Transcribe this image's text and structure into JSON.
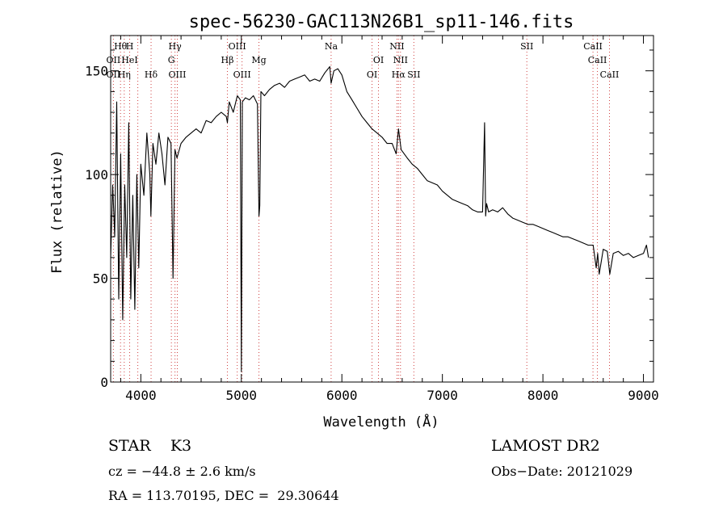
{
  "chart_data": {
    "type": "line",
    "title": "spec-56230-GAC113N26B1_sp11-146.fits",
    "xlabel": "Wavelength (Å)",
    "ylabel": "Flux (relative)",
    "xlim": [
      3700,
      9100
    ],
    "ylim": [
      0,
      167
    ],
    "xticks": [
      4000,
      5000,
      6000,
      7000,
      8000,
      9000
    ],
    "yticks": [
      0,
      50,
      100,
      150
    ],
    "grid": false,
    "series": [
      {
        "color": "#000000",
        "x": [
          3700,
          3720,
          3740,
          3760,
          3780,
          3800,
          3820,
          3840,
          3860,
          3880,
          3900,
          3920,
          3940,
          3960,
          3980,
          4000,
          4030,
          4060,
          4090,
          4100,
          4120,
          4150,
          4180,
          4210,
          4240,
          4270,
          4300,
          4320,
          4340,
          4360,
          4400,
          4450,
          4500,
          4550,
          4600,
          4650,
          4700,
          4750,
          4800,
          4850,
          4861,
          4880,
          4920,
          4960,
          4990,
          5000,
          5010,
          5040,
          5080,
          5120,
          5160,
          5175,
          5183,
          5195,
          5230,
          5280,
          5330,
          5380,
          5430,
          5480,
          5530,
          5580,
          5630,
          5680,
          5730,
          5780,
          5830,
          5880,
          5893,
          5920,
          5960,
          6000,
          6050,
          6100,
          6150,
          6200,
          6250,
          6300,
          6350,
          6400,
          6450,
          6500,
          6540,
          6563,
          6590,
          6650,
          6700,
          6750,
          6800,
          6850,
          6900,
          6950,
          7000,
          7050,
          7100,
          7150,
          7200,
          7250,
          7300,
          7350,
          7400,
          7420,
          7430,
          7440,
          7460,
          7500,
          7550,
          7600,
          7650,
          7700,
          7750,
          7800,
          7850,
          7900,
          7950,
          8000,
          8050,
          8100,
          8150,
          8200,
          8250,
          8300,
          8350,
          8400,
          8450,
          8500,
          8530,
          8545,
          8560,
          8600,
          8640,
          8665,
          8700,
          8750,
          8800,
          8850,
          8900,
          8950,
          9000,
          9030,
          9050
        ],
        "y": [
          60,
          95,
          70,
          135,
          40,
          110,
          30,
          95,
          60,
          125,
          40,
          90,
          35,
          100,
          55,
          105,
          90,
          120,
          100,
          80,
          115,
          105,
          120,
          110,
          95,
          118,
          115,
          50,
          112,
          108,
          115,
          118,
          120,
          122,
          120,
          126,
          125,
          128,
          130,
          128,
          125,
          135,
          130,
          138,
          136,
          5,
          135,
          137,
          136,
          138,
          134,
          80,
          85,
          140,
          138,
          141,
          143,
          144,
          142,
          145,
          146,
          147,
          148,
          145,
          146,
          145,
          149,
          152,
          144,
          150,
          151,
          148,
          140,
          136,
          132,
          128,
          125,
          122,
          120,
          118,
          115,
          115,
          110,
          122,
          112,
          108,
          105,
          103,
          100,
          97,
          96,
          95,
          92,
          90,
          88,
          87,
          86,
          85,
          83,
          82,
          82,
          125,
          80,
          86,
          82,
          83,
          82,
          84,
          81,
          79,
          78,
          77,
          76,
          76,
          75,
          74,
          73,
          72,
          71,
          70,
          70,
          69,
          68,
          67,
          66,
          66,
          55,
          62,
          52,
          64,
          63,
          52,
          62,
          63,
          61,
          62,
          60,
          61,
          62,
          66,
          60
        ]
      }
    ],
    "line_labels": [
      {
        "text": "Hθ",
        "x": 3798,
        "row": 0
      },
      {
        "text": "H",
        "x": 3889,
        "row": 0
      },
      {
        "text": "Hγ",
        "x": 4340,
        "row": 0
      },
      {
        "text": "OIII",
        "x": 4959,
        "row": 0
      },
      {
        "text": "Na",
        "x": 5893,
        "row": 0
      },
      {
        "text": "NII",
        "x": 6548,
        "row": 0
      },
      {
        "text": "SII",
        "x": 7840,
        "row": 0
      },
      {
        "text": "CaII",
        "x": 8498,
        "row": 0
      },
      {
        "text": "OII",
        "x": 3727,
        "row": 1
      },
      {
        "text": "HeI",
        "x": 3889,
        "row": 1
      },
      {
        "text": "G",
        "x": 4304,
        "row": 1
      },
      {
        "text": "Hβ",
        "x": 4861,
        "row": 1
      },
      {
        "text": "Mg",
        "x": 5175,
        "row": 1
      },
      {
        "text": "OI",
        "x": 6364,
        "row": 1
      },
      {
        "text": "NII",
        "x": 6583,
        "row": 1
      },
      {
        "text": "CaII",
        "x": 8542,
        "row": 1
      },
      {
        "text": "OII",
        "x": 3727,
        "row": 2
      },
      {
        "text": "Hη",
        "x": 3835,
        "row": 2
      },
      {
        "text": "Hδ",
        "x": 4102,
        "row": 2
      },
      {
        "text": "OIII",
        "x": 4363,
        "row": 2
      },
      {
        "text": "OIII",
        "x": 5007,
        "row": 2
      },
      {
        "text": "OI",
        "x": 6300,
        "row": 2
      },
      {
        "text": "Hα",
        "x": 6563,
        "row": 2
      },
      {
        "text": "SII",
        "x": 6716,
        "row": 2
      },
      {
        "text": "CaII",
        "x": 8662,
        "row": 2
      }
    ],
    "marker_lines": [
      3727,
      3798,
      3835,
      3889,
      3970,
      4102,
      4304,
      4340,
      4363,
      4861,
      4959,
      5007,
      5175,
      5893,
      6300,
      6364,
      6548,
      6563,
      6583,
      6716,
      7840,
      8498,
      8542,
      8662
    ]
  },
  "footer": {
    "object": "STAR    K3",
    "survey": "LAMOST DR2",
    "cz": "cz = −44.8 ± 2.6 km/s",
    "obs_date": "Obs−Date: 20121029",
    "coords": "RA = 113.70195, DEC =  29.30644"
  }
}
